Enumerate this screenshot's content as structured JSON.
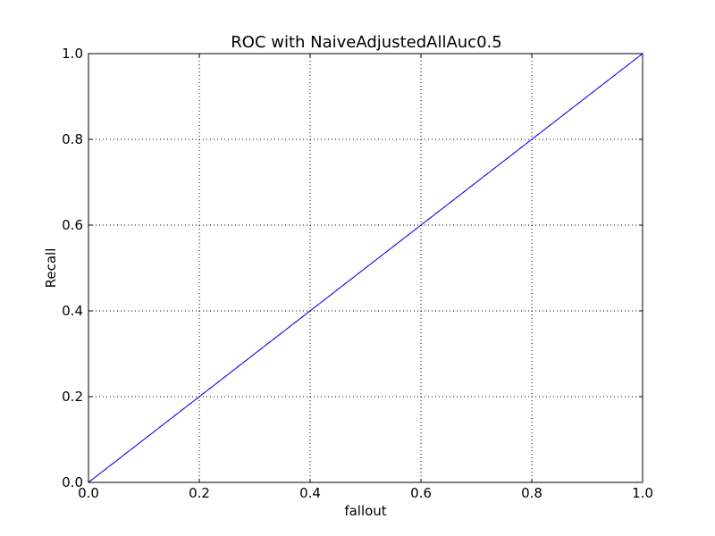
{
  "chart_data": {
    "type": "line",
    "title": "ROC with NaiveAdjustedAllAuc0.5",
    "xlabel": "fallout",
    "ylabel": "Recall",
    "xlim": [
      0.0,
      1.0
    ],
    "ylim": [
      0.0,
      1.0
    ],
    "xticks": [
      "0.0",
      "0.2",
      "0.4",
      "0.6",
      "0.8",
      "1.0"
    ],
    "yticks": [
      "0.0",
      "0.2",
      "0.4",
      "0.6",
      "0.8",
      "1.0"
    ],
    "grid": true,
    "legend": "none",
    "series": [
      {
        "x": [
          0.0,
          1.0
        ],
        "y": [
          0.0,
          1.0
        ],
        "color": "#ff0000",
        "style": "dashed"
      },
      {
        "x": [
          0.0,
          1.0
        ],
        "y": [
          0.0,
          1.0
        ],
        "color": "#0000ff",
        "style": "solid"
      }
    ]
  }
}
